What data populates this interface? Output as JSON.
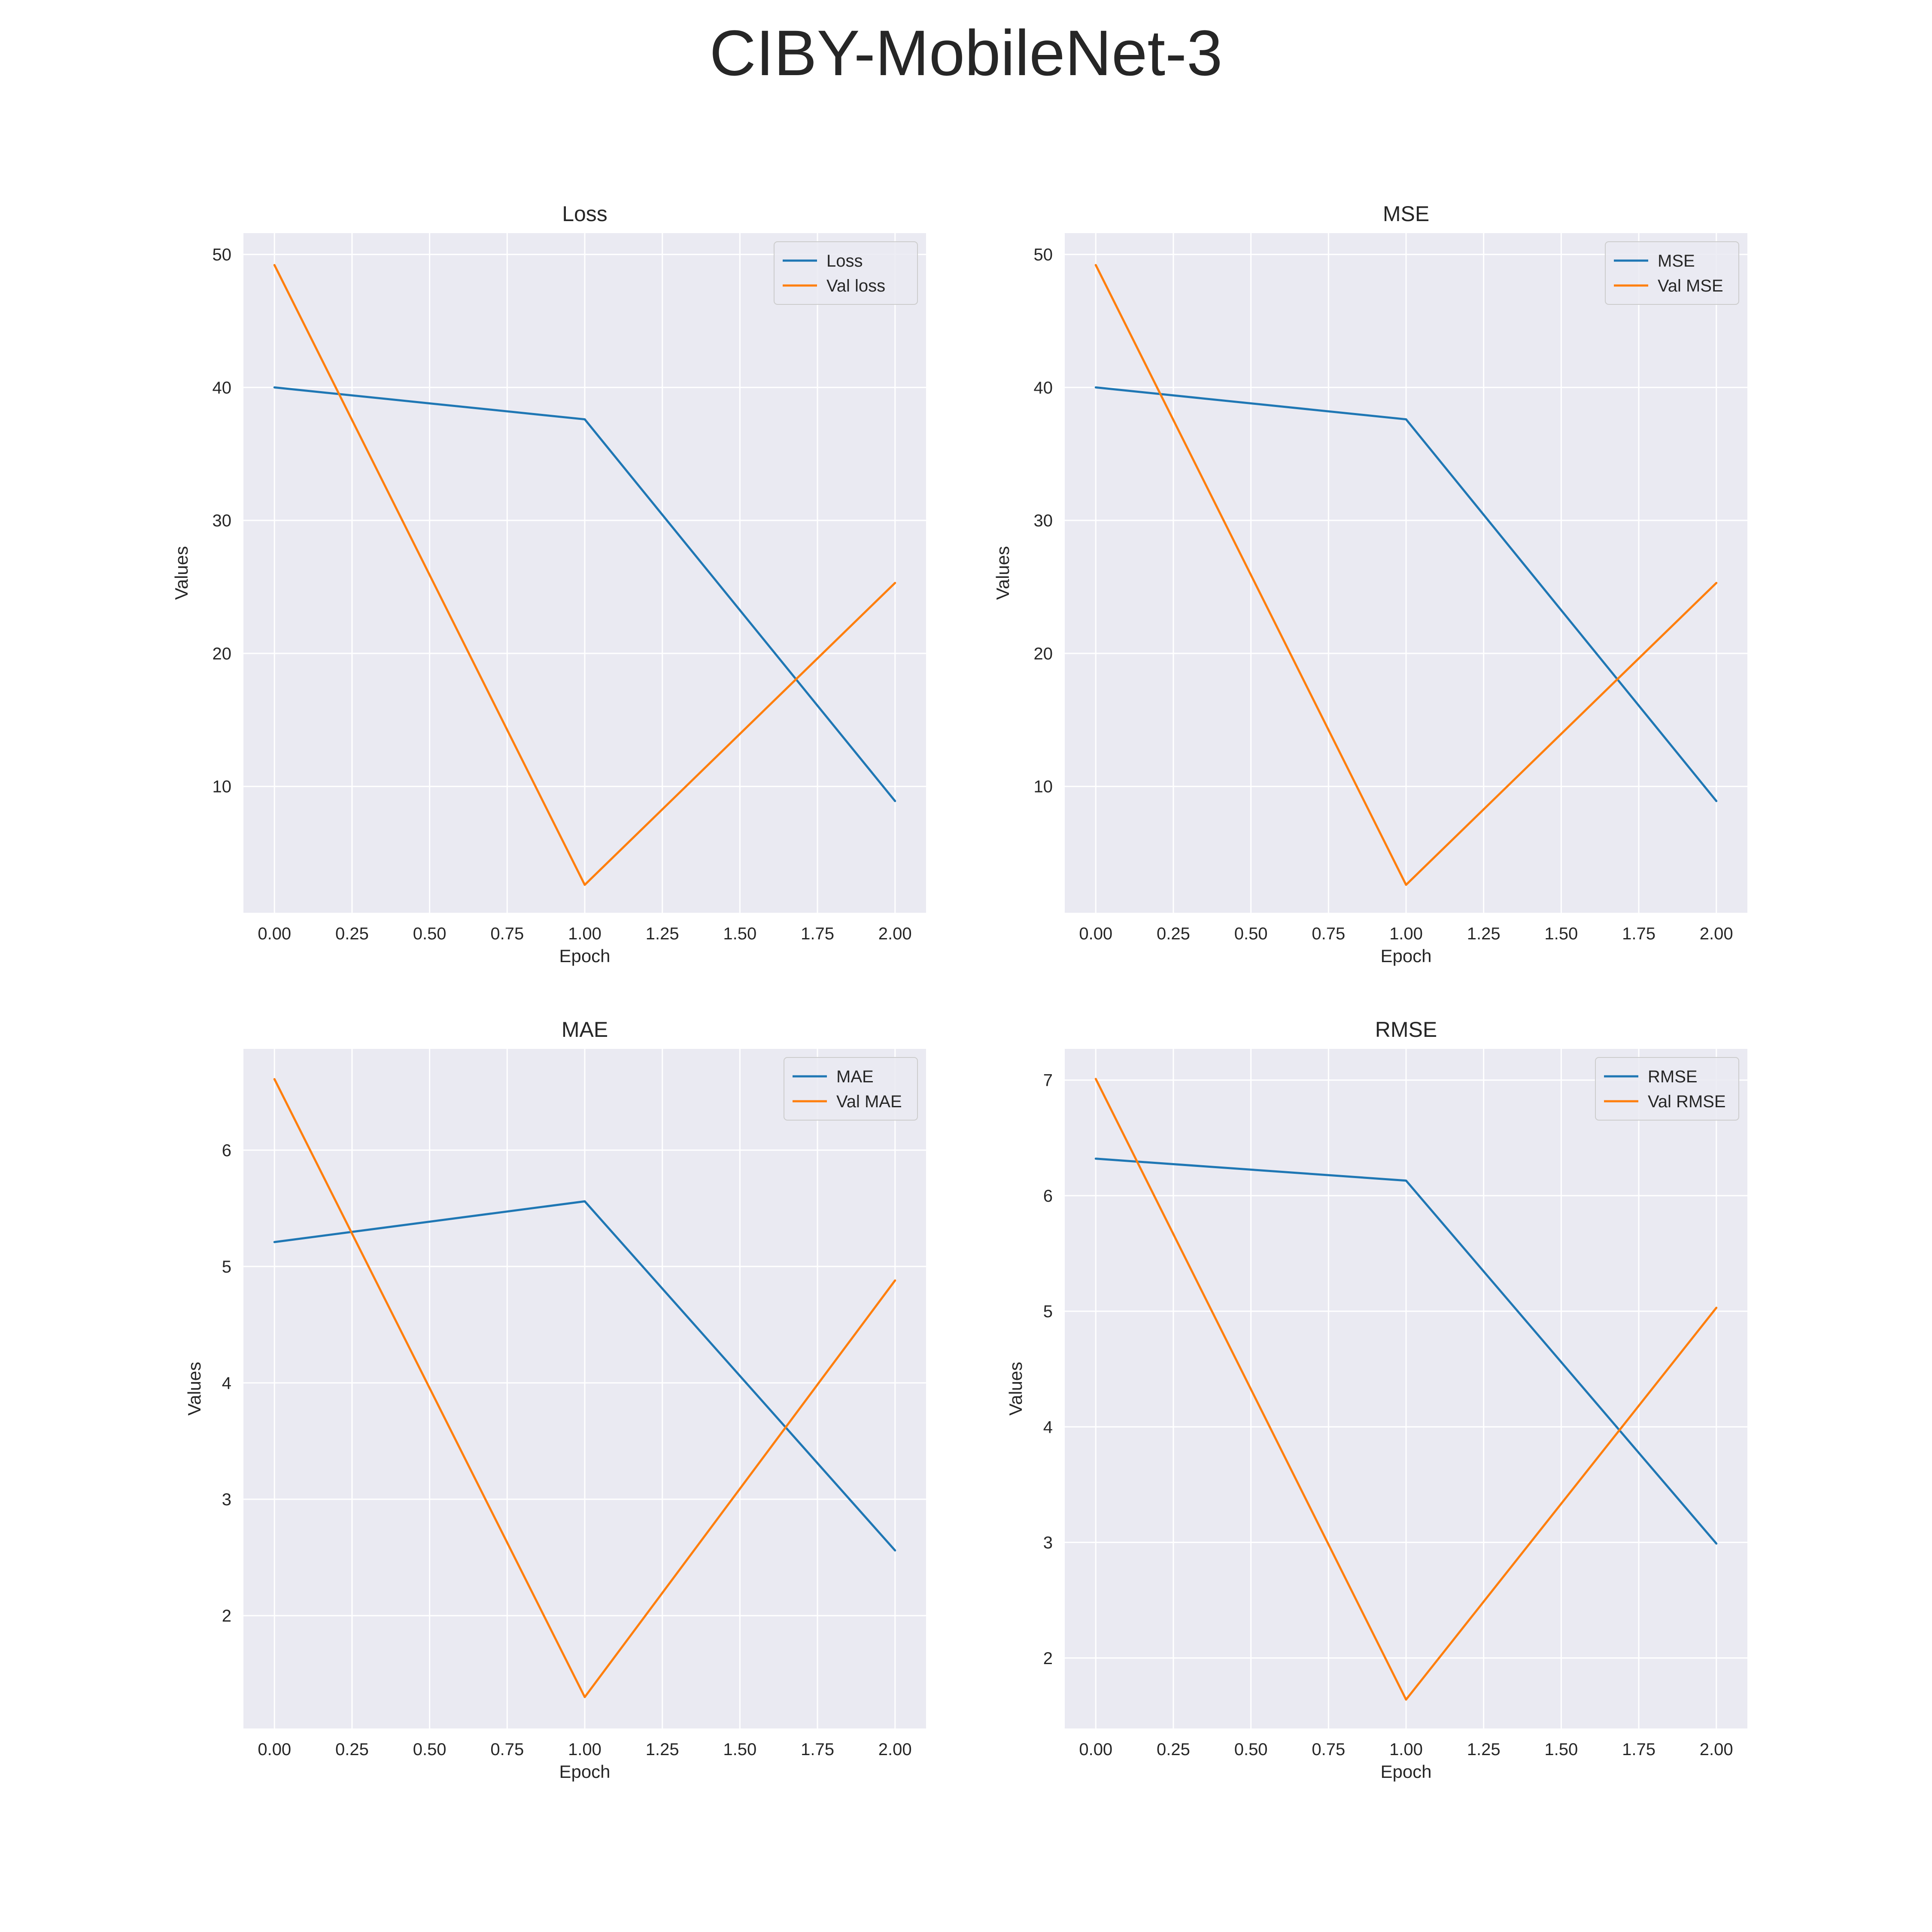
{
  "figure_title": "CIBY-MobileNet-3",
  "colors": {
    "train": "#1f77b4",
    "val": "#ff7f0e",
    "axes_bg": "#eaeaf2",
    "grid": "#ffffff",
    "text": "#262626"
  },
  "chart_data": [
    {
      "type": "line",
      "title": "Loss",
      "xlabel": "Epoch",
      "ylabel": "Values",
      "x": [
        0,
        1,
        2
      ],
      "xlim": [
        -0.1,
        2.1
      ],
      "ylim": [
        0.5,
        51.6
      ],
      "xticks": [
        0,
        0.25,
        0.5,
        0.75,
        1,
        1.25,
        1.5,
        1.75,
        2
      ],
      "xtick_labels": [
        "0.00",
        "0.25",
        "0.50",
        "0.75",
        "1.00",
        "1.25",
        "1.50",
        "1.75",
        "2.00"
      ],
      "yticks": [
        10,
        20,
        30,
        40,
        50
      ],
      "ytick_labels": [
        "10",
        "20",
        "30",
        "40",
        "50"
      ],
      "legend_position": "top-right",
      "grid": true,
      "series": [
        {
          "name": "Loss",
          "color_key": "train",
          "values": [
            40.0,
            37.6,
            8.9
          ]
        },
        {
          "name": "Val loss",
          "color_key": "val",
          "values": [
            49.2,
            2.6,
            25.3
          ]
        }
      ]
    },
    {
      "type": "line",
      "title": "MSE",
      "xlabel": "Epoch",
      "ylabel": "Values",
      "x": [
        0,
        1,
        2
      ],
      "xlim": [
        -0.1,
        2.1
      ],
      "ylim": [
        0.5,
        51.6
      ],
      "xticks": [
        0,
        0.25,
        0.5,
        0.75,
        1,
        1.25,
        1.5,
        1.75,
        2
      ],
      "xtick_labels": [
        "0.00",
        "0.25",
        "0.50",
        "0.75",
        "1.00",
        "1.25",
        "1.50",
        "1.75",
        "2.00"
      ],
      "yticks": [
        10,
        20,
        30,
        40,
        50
      ],
      "ytick_labels": [
        "10",
        "20",
        "30",
        "40",
        "50"
      ],
      "legend_position": "top-right",
      "grid": true,
      "series": [
        {
          "name": "MSE",
          "color_key": "train",
          "values": [
            40.0,
            37.6,
            8.9
          ]
        },
        {
          "name": "Val MSE",
          "color_key": "val",
          "values": [
            49.2,
            2.6,
            25.3
          ]
        }
      ]
    },
    {
      "type": "line",
      "title": "MAE",
      "xlabel": "Epoch",
      "ylabel": "Values",
      "x": [
        0,
        1,
        2
      ],
      "xlim": [
        -0.1,
        2.1
      ],
      "ylim": [
        1.03,
        6.87
      ],
      "xticks": [
        0,
        0.25,
        0.5,
        0.75,
        1,
        1.25,
        1.5,
        1.75,
        2
      ],
      "xtick_labels": [
        "0.00",
        "0.25",
        "0.50",
        "0.75",
        "1.00",
        "1.25",
        "1.50",
        "1.75",
        "2.00"
      ],
      "yticks": [
        2,
        3,
        4,
        5,
        6
      ],
      "ytick_labels": [
        "2",
        "3",
        "4",
        "5",
        "6"
      ],
      "legend_position": "top-right",
      "grid": true,
      "series": [
        {
          "name": "MAE",
          "color_key": "train",
          "values": [
            5.21,
            5.56,
            2.56
          ]
        },
        {
          "name": "Val MAE",
          "color_key": "val",
          "values": [
            6.61,
            1.3,
            4.88
          ]
        }
      ]
    },
    {
      "type": "line",
      "title": "RMSE",
      "xlabel": "Epoch",
      "ylabel": "Values",
      "x": [
        0,
        1,
        2
      ],
      "xlim": [
        -0.1,
        2.1
      ],
      "ylim": [
        1.39,
        7.27
      ],
      "xticks": [
        0,
        0.25,
        0.5,
        0.75,
        1,
        1.25,
        1.5,
        1.75,
        2
      ],
      "xtick_labels": [
        "0.00",
        "0.25",
        "0.50",
        "0.75",
        "1.00",
        "1.25",
        "1.50",
        "1.75",
        "2.00"
      ],
      "yticks": [
        2,
        3,
        4,
        5,
        6,
        7
      ],
      "ytick_labels": [
        "2",
        "3",
        "4",
        "5",
        "6",
        "7"
      ],
      "legend_position": "top-right",
      "grid": true,
      "series": [
        {
          "name": "RMSE",
          "color_key": "train",
          "values": [
            6.32,
            6.13,
            2.99
          ]
        },
        {
          "name": "Val RMSE",
          "color_key": "val",
          "values": [
            7.01,
            1.64,
            5.03
          ]
        }
      ]
    }
  ]
}
